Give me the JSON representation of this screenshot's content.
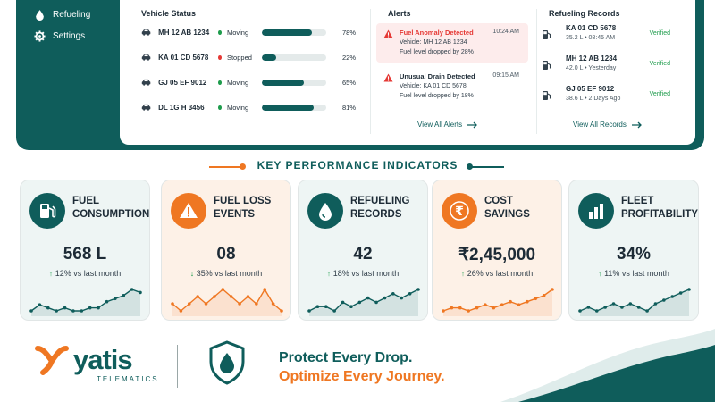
{
  "sidebar": {
    "items": [
      {
        "label": "Refueling",
        "icon": "fuel-drop-icon"
      },
      {
        "label": "Settings",
        "icon": "gear-icon"
      }
    ]
  },
  "vehicle_status": {
    "title": "Vehicle Status",
    "rows": [
      {
        "plate": "MH 12 AB 1234",
        "state": "Moving",
        "state_color": "#1e9c4c",
        "level": 78,
        "pct": "78%"
      },
      {
        "plate": "KA 01 CD 5678",
        "state": "Stopped",
        "state_color": "#e53935",
        "level": 22,
        "pct": "22%"
      },
      {
        "plate": "GJ 05 EF 9012",
        "state": "Moving",
        "state_color": "#1e9c4c",
        "level": 65,
        "pct": "65%"
      },
      {
        "plate": "DL 1G H 3456",
        "state": "Moving",
        "state_color": "#1e9c4c",
        "level": 81,
        "pct": "81%"
      }
    ]
  },
  "alerts": {
    "title": "Alerts",
    "items": [
      {
        "title": "Fuel Anomaly Detected",
        "time": "10:24 AM",
        "vehicle": "Vehicle: MH 12 AB 1234",
        "detail": "Fuel level dropped by 28%"
      },
      {
        "title": "Unusual Drain Detected",
        "time": "09:15 AM",
        "vehicle": "Vehicle: KA 01 CD 5678",
        "detail": "Fuel level dropped by 18%"
      }
    ],
    "view_all": "View All Alerts"
  },
  "refueling_records": {
    "title": "Refueling Records",
    "items": [
      {
        "plate": "KA 01 CD 5678",
        "meta": "35.2 L  •  08:45 AM",
        "status": "Verified"
      },
      {
        "plate": "MH 12 AB 1234",
        "meta": "42.0 L  •  Yesterday",
        "status": "Verified"
      },
      {
        "plate": "GJ 05 EF 9012",
        "meta": "38.6 L  •  2 Days Ago",
        "status": "Verified"
      }
    ],
    "view_all": "View All Records"
  },
  "kpi": {
    "heading": "KEY PERFORMANCE INDICATORS",
    "cards": [
      {
        "label": "FUEL\nCONSUMPTION",
        "value": "568 L",
        "arrow": "↑",
        "change": "12% vs last month",
        "icon": "gas-pump-icon",
        "accent": "#0f5d5b",
        "bg": "#eef5f4",
        "trend": [
          3,
          5,
          4,
          3,
          4,
          3,
          3,
          4,
          4,
          6,
          7,
          8,
          10,
          9
        ]
      },
      {
        "label": "FUEL LOSS\nEVENTS",
        "value": "08",
        "arrow": "↓",
        "change": "35% vs last month",
        "icon": "warning-icon",
        "accent": "#ef7722",
        "bg": "#fdf1e7",
        "trend": [
          5,
          4,
          5,
          6,
          5,
          6,
          7,
          6,
          5,
          6,
          5,
          7,
          5,
          4
        ]
      },
      {
        "label": "REFUELING\nRECORDS",
        "value": "42",
        "arrow": "↑",
        "change": "18% vs last month",
        "icon": "fuel-drop-icon",
        "accent": "#0f5d5b",
        "bg": "#eef5f4",
        "trend": [
          3,
          4,
          4,
          3,
          5,
          4,
          5,
          6,
          5,
          6,
          7,
          6,
          7,
          8
        ]
      },
      {
        "label": "COST\nSAVINGS",
        "value": "₹2,45,000",
        "arrow": "↑",
        "change": "26% vs last month",
        "icon": "rupee-icon",
        "accent": "#ef7722",
        "bg": "#fdf1e7",
        "trend": [
          2,
          3,
          3,
          2,
          3,
          4,
          3,
          4,
          5,
          4,
          5,
          6,
          7,
          9
        ]
      },
      {
        "label": "FLEET\nPROFITABILITY",
        "value": "34%",
        "arrow": "↑",
        "change": "11% vs last month",
        "icon": "bar-chart-icon",
        "accent": "#0f5d5b",
        "bg": "#eef5f4",
        "trend": [
          3,
          4,
          3,
          4,
          5,
          4,
          5,
          4,
          3,
          5,
          6,
          7,
          8,
          9
        ]
      }
    ]
  },
  "footer": {
    "brand": "yatis",
    "brand_sub": "TELEMATICS",
    "tagline_1": "Protect Every Drop.",
    "tagline_2": "Optimize Every Journey."
  },
  "colors": {
    "teal": "#0f5d5b",
    "orange": "#ef7722",
    "green": "#1e9c4c",
    "red": "#e53935"
  }
}
